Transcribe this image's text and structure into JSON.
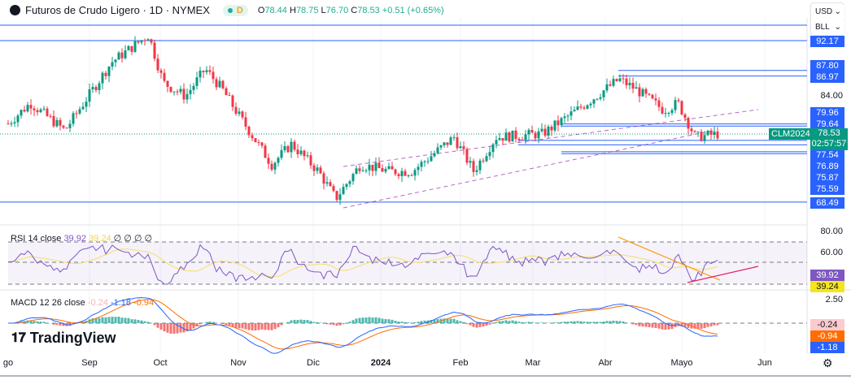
{
  "header": {
    "title": "Futuros de Crudo Ligero · 1D · NYMEX",
    "interval_badge": "D",
    "ohlc": {
      "o_label": "O",
      "o": "78.44",
      "h_label": "H",
      "h": "78.75",
      "l_label": "L",
      "l": "76.70",
      "c_label": "C",
      "c": "78.53",
      "change": "+0.51 (+0.65%)"
    }
  },
  "selectors": {
    "currency": "USD",
    "unit": "BLL"
  },
  "price_labels": [
    "92.17",
    "87.80",
    "86.97",
    "79.96",
    "79.64",
    "77.54",
    "76.89",
    "75.87",
    "75.59",
    "68.49"
  ],
  "price_axis_tick": "84.00",
  "last_price": {
    "symbol": "CLM2024",
    "price": "78.53",
    "countdown": "02:57:57"
  },
  "rsi": {
    "legend": "RSI 14 close",
    "value": "39.92",
    "ma": "39.24",
    "na": "∅ ∅ ∅ ∅",
    "ticks": [
      "80.00",
      "60.00"
    ]
  },
  "macd": {
    "legend": "MACD 12 26 close",
    "hist": "-0.24",
    "macd": "-1.18",
    "signal": "-0.94",
    "tick": "2.50"
  },
  "logo": "TradingView",
  "x_axis": [
    "go",
    "Sep",
    "Oct",
    "Nov",
    "Dic",
    "2024",
    "Feb",
    "Mar",
    "Abr",
    "Mayo",
    "Jun"
  ],
  "colors": {
    "up": "#089981",
    "down": "#f23645",
    "level": "#2962ff",
    "rsi": "#7e57c2",
    "rsi_ma": "#f5e27a",
    "macd": "#2962ff",
    "signal": "#ff6d00"
  },
  "chart_data": {
    "type": "candlestick",
    "ylim": [
      66,
      96
    ],
    "approx_closes": [
      {
        "date": "2023-08-01",
        "close": 80
      },
      {
        "date": "2023-08-10",
        "close": 83
      },
      {
        "date": "2023-08-24",
        "close": 79
      },
      {
        "date": "2023-09-12",
        "close": 89
      },
      {
        "date": "2023-09-27",
        "close": 93
      },
      {
        "date": "2023-10-03",
        "close": 86
      },
      {
        "date": "2023-10-12",
        "close": 84
      },
      {
        "date": "2023-10-20",
        "close": 88
      },
      {
        "date": "2023-10-27",
        "close": 85
      },
      {
        "date": "2023-11-03",
        "close": 81
      },
      {
        "date": "2023-11-16",
        "close": 74
      },
      {
        "date": "2023-11-24",
        "close": 77
      },
      {
        "date": "2023-12-05",
        "close": 73
      },
      {
        "date": "2023-12-12",
        "close": 69
      },
      {
        "date": "2023-12-22",
        "close": 74
      },
      {
        "date": "2024-01-03",
        "close": 73
      },
      {
        "date": "2024-01-12",
        "close": 73
      },
      {
        "date": "2024-01-29",
        "close": 78
      },
      {
        "date": "2024-02-06",
        "close": 73
      },
      {
        "date": "2024-02-15",
        "close": 78
      },
      {
        "date": "2024-03-05",
        "close": 78.5
      },
      {
        "date": "2024-03-19",
        "close": 82
      },
      {
        "date": "2024-04-05",
        "close": 86.5
      },
      {
        "date": "2024-04-12",
        "close": 85
      },
      {
        "date": "2024-04-23",
        "close": 82
      },
      {
        "date": "2024-04-29",
        "close": 83
      },
      {
        "date": "2024-05-06",
        "close": 78
      },
      {
        "date": "2024-05-16",
        "close": 78.53
      }
    ]
  }
}
